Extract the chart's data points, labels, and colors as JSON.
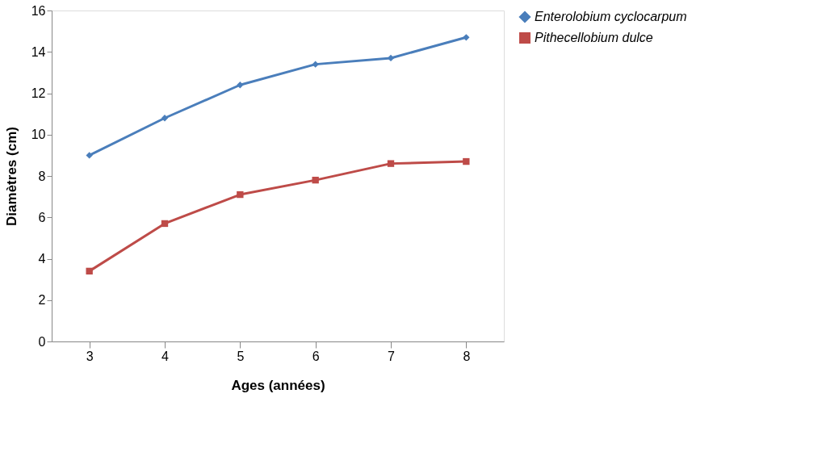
{
  "chart_data": {
    "type": "line",
    "xlabel": "Ages (années)",
    "ylabel": "Diamètres (cm)",
    "categories": [
      "3",
      "4",
      "5",
      "6",
      "7",
      "8"
    ],
    "series": [
      {
        "name": "Enterolobium cyclocarpum",
        "color": "#4a7ebb",
        "marker": "diamond",
        "values": [
          9.0,
          10.8,
          12.4,
          13.4,
          13.7,
          14.7
        ]
      },
      {
        "name": "Pithecellobium dulce",
        "color": "#be4b48",
        "marker": "square",
        "values": [
          3.4,
          5.7,
          7.1,
          7.8,
          8.6,
          8.7
        ]
      }
    ],
    "ylim": [
      0,
      16
    ],
    "yticks": [
      0,
      2,
      4,
      6,
      8,
      10,
      12,
      14,
      16
    ],
    "grid": false,
    "legend": "right"
  }
}
